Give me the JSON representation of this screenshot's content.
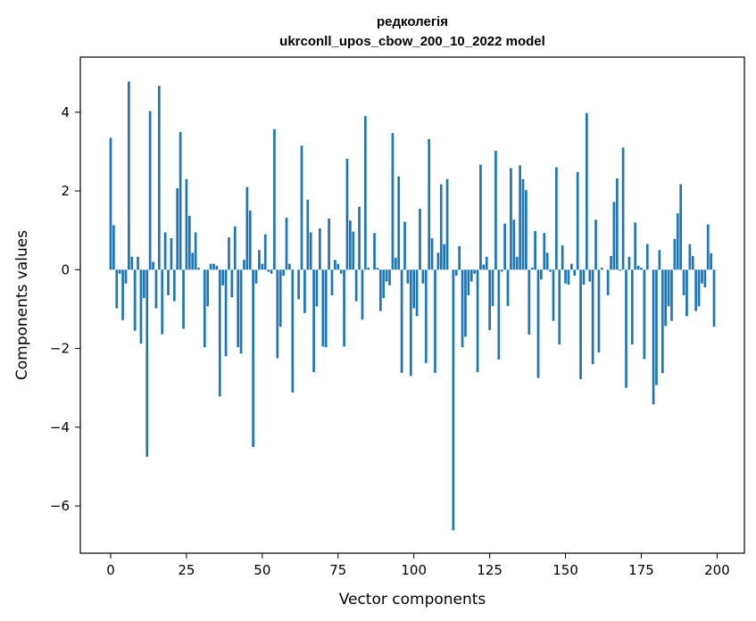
{
  "chart_data": {
    "type": "bar",
    "title_line1": "редколегія",
    "title_line2": "ukrconll_upos_cbow_200_10_2022 model",
    "xlabel": "Vector components",
    "ylabel": "Components values",
    "xlim": [
      -10,
      209
    ],
    "ylim": [
      -7.2,
      5.4
    ],
    "xticks": [
      0,
      25,
      50,
      75,
      100,
      125,
      150,
      175,
      200
    ],
    "yticks": [
      -6,
      -4,
      -2,
      0,
      2,
      4
    ],
    "color": "#1f77b4",
    "grid": false,
    "values": [
      3.35,
      1.13,
      -0.98,
      -0.1,
      -1.28,
      -0.35,
      4.78,
      0.33,
      -1.55,
      0.33,
      -1.88,
      -0.72,
      -4.75,
      4.03,
      0.2,
      -0.98,
      4.67,
      -1.64,
      0.95,
      -0.65,
      0.8,
      -0.8,
      2.07,
      3.5,
      -1.5,
      2.3,
      1.37,
      0.43,
      0.95,
      0.05,
      0.0,
      -1.97,
      -0.93,
      0.15,
      0.15,
      0.1,
      -3.22,
      -0.4,
      -2.2,
      0.82,
      -0.7,
      1.1,
      -1.97,
      -2.13,
      0.25,
      2.1,
      1.5,
      -4.5,
      -0.35,
      0.5,
      0.15,
      0.9,
      -0.05,
      -0.1,
      3.57,
      -2.25,
      -1.45,
      -0.15,
      1.32,
      0.15,
      -3.12,
      0.0,
      -0.75,
      3.15,
      -1.1,
      1.78,
      0.95,
      -2.6,
      -0.93,
      1.05,
      -1.95,
      -1.97,
      1.3,
      -0.65,
      0.25,
      0.15,
      -0.1,
      -1.95,
      2.82,
      1.25,
      0.97,
      -0.8,
      1.6,
      -1.27,
      3.9,
      0.05,
      0.0,
      0.93,
      0.05,
      -1.05,
      -0.72,
      -0.3,
      -0.4,
      3.47,
      0.3,
      2.37,
      -2.62,
      1.22,
      -0.35,
      -2.7,
      -0.98,
      -1.18,
      1.55,
      -0.35,
      -2.37,
      3.32,
      0.8,
      -2.62,
      0.43,
      2.17,
      0.65,
      2.3,
      0.0,
      -6.62,
      -0.15,
      0.6,
      -1.97,
      -1.7,
      -0.65,
      -0.3,
      -0.1,
      -2.6,
      2.67,
      0.13,
      0.33,
      -1.53,
      -0.92,
      3.02,
      -2.28,
      -0.05,
      1.17,
      -0.92,
      2.58,
      1.27,
      0.33,
      2.65,
      2.3,
      2.02,
      -1.65,
      0.05,
      0.98,
      -2.75,
      -0.25,
      0.93,
      0.43,
      -0.05,
      -1.3,
      2.6,
      -1.9,
      0.62,
      -0.35,
      -0.38,
      0.15,
      -0.15,
      2.48,
      -2.78,
      -0.38,
      3.98,
      -0.3,
      -2.4,
      1.27,
      -2.1,
      0.05,
      0.0,
      -0.65,
      0.35,
      1.72,
      2.32,
      -0.03,
      3.1,
      -3.0,
      0.33,
      -1.9,
      1.2,
      0.1,
      0.05,
      -2.27,
      0.65,
      0.0,
      -3.42,
      -2.93,
      0.5,
      -2.63,
      -1.43,
      -0.93,
      -1.3,
      0.78,
      1.43,
      2.17,
      -0.65,
      -1.18,
      0.65,
      0.35,
      -1.05,
      -0.93,
      -0.35,
      -0.45,
      1.15,
      0.42,
      -1.45
    ]
  }
}
